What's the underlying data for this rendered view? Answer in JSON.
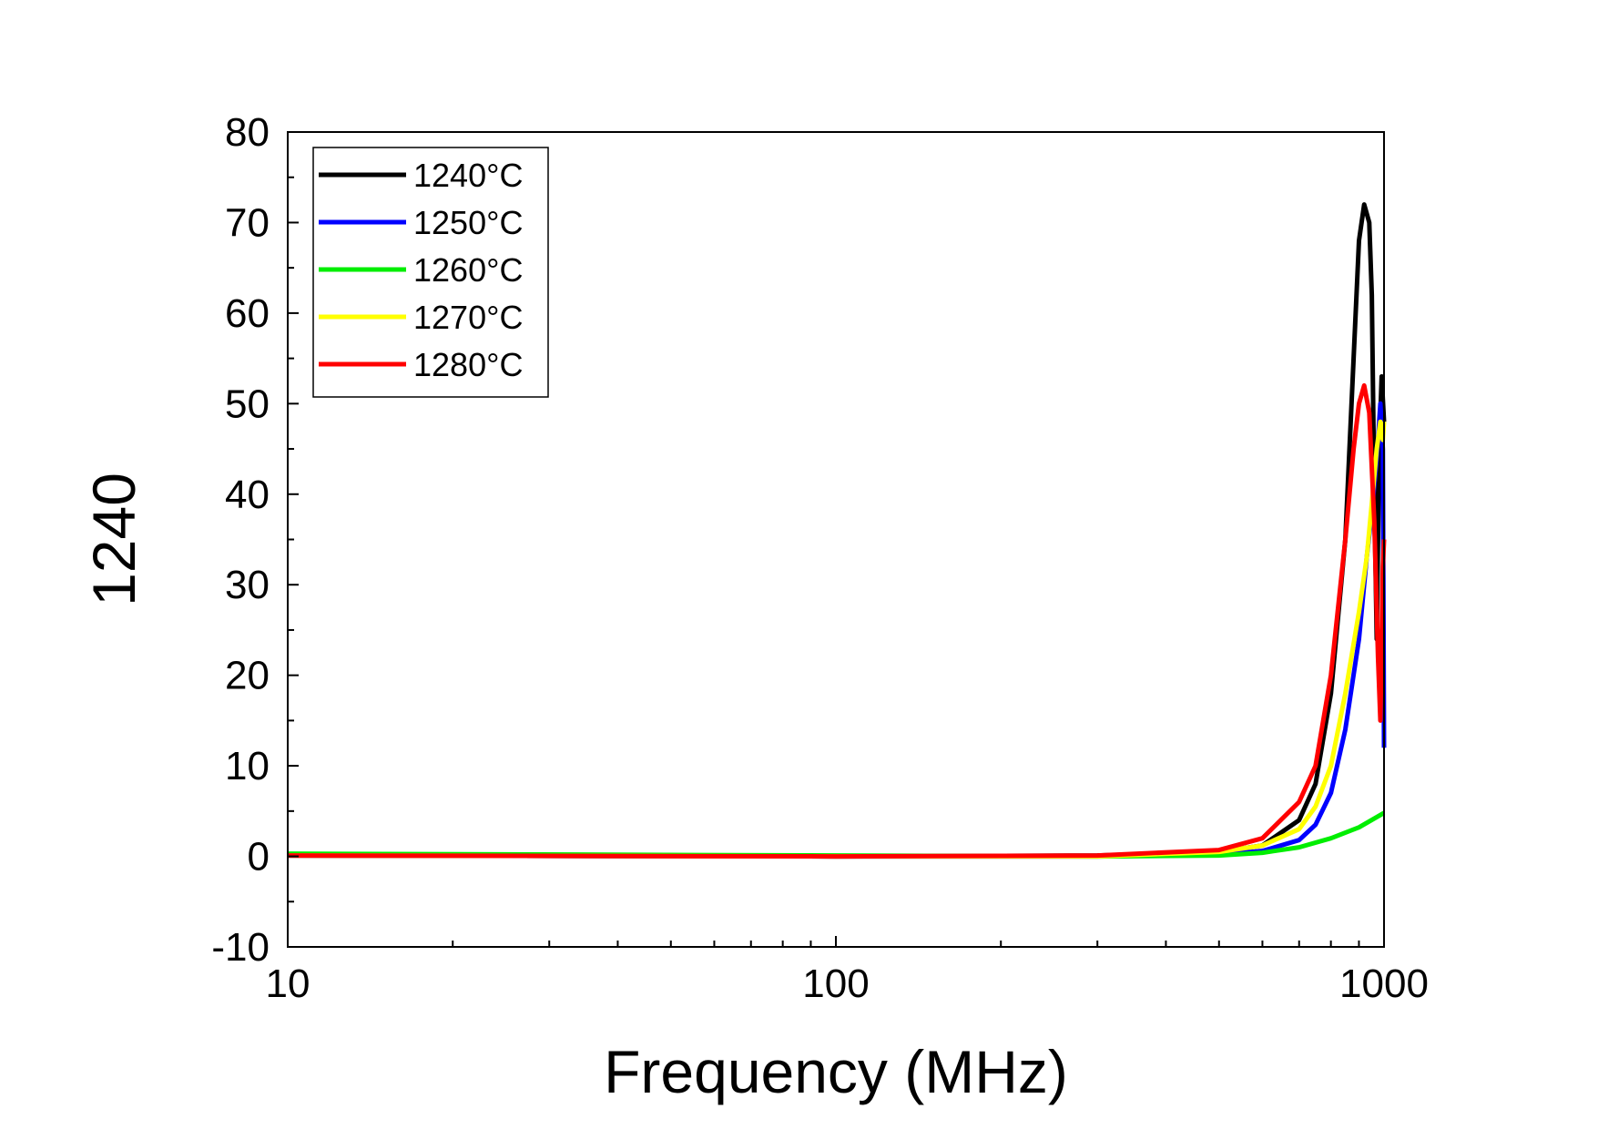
{
  "chart_data": {
    "type": "line",
    "title": "",
    "xlabel": "Frequency (MHz)",
    "ylabel": "1240",
    "xscale": "log",
    "xlim": [
      10,
      1000
    ],
    "ylim": [
      -10,
      80
    ],
    "grid": false,
    "legend_position": "top-left",
    "x_ticks": [
      {
        "value": 10,
        "label": "10"
      },
      {
        "value": 100,
        "label": "100"
      },
      {
        "value": 1000,
        "label": "1000"
      }
    ],
    "y_ticks": [
      {
        "value": -10,
        "label": "-10"
      },
      {
        "value": 0,
        "label": "0"
      },
      {
        "value": 10,
        "label": "10"
      },
      {
        "value": 20,
        "label": "20"
      },
      {
        "value": 30,
        "label": "30"
      },
      {
        "value": 40,
        "label": "40"
      },
      {
        "value": 50,
        "label": "50"
      },
      {
        "value": 60,
        "label": "60"
      },
      {
        "value": 70,
        "label": "70"
      },
      {
        "value": 80,
        "label": "80"
      }
    ],
    "series": [
      {
        "name": "1240°C",
        "color": "#000000",
        "points": [
          [
            10,
            0.1
          ],
          [
            100,
            0
          ],
          [
            300,
            0.1
          ],
          [
            500,
            0.5
          ],
          [
            600,
            1.2
          ],
          [
            700,
            4
          ],
          [
            750,
            8
          ],
          [
            800,
            18
          ],
          [
            850,
            35
          ],
          [
            880,
            55
          ],
          [
            900,
            68
          ],
          [
            920,
            72
          ],
          [
            940,
            70
          ],
          [
            950,
            62
          ],
          [
            960,
            40
          ],
          [
            970,
            24
          ],
          [
            980,
            45
          ],
          [
            990,
            53
          ],
          [
            1000,
            48
          ]
        ]
      },
      {
        "name": "1250°C",
        "color": "#0000ff",
        "points": [
          [
            10,
            0.1
          ],
          [
            100,
            0
          ],
          [
            300,
            0
          ],
          [
            500,
            0.2
          ],
          [
            600,
            0.6
          ],
          [
            700,
            1.8
          ],
          [
            750,
            3.5
          ],
          [
            800,
            7
          ],
          [
            850,
            14
          ],
          [
            900,
            24
          ],
          [
            930,
            33
          ],
          [
            950,
            38
          ],
          [
            970,
            44
          ],
          [
            985,
            50
          ],
          [
            995,
            45
          ],
          [
            1000,
            12
          ]
        ]
      },
      {
        "name": "1260°C",
        "color": "#00ee00",
        "points": [
          [
            10,
            0.3
          ],
          [
            100,
            0.1
          ],
          [
            300,
            0
          ],
          [
            500,
            0.1
          ],
          [
            600,
            0.4
          ],
          [
            700,
            1
          ],
          [
            800,
            2
          ],
          [
            900,
            3.2
          ],
          [
            1000,
            4.8
          ]
        ]
      },
      {
        "name": "1270°C",
        "color": "#ffff00",
        "points": [
          [
            10,
            0.1
          ],
          [
            100,
            0
          ],
          [
            300,
            0
          ],
          [
            500,
            0.5
          ],
          [
            600,
            1.2
          ],
          [
            700,
            3
          ],
          [
            750,
            5.5
          ],
          [
            800,
            10
          ],
          [
            850,
            18
          ],
          [
            900,
            27
          ],
          [
            930,
            33
          ],
          [
            950,
            39
          ],
          [
            970,
            45
          ],
          [
            985,
            48
          ],
          [
            995,
            46
          ],
          [
            1000,
            48
          ]
        ]
      },
      {
        "name": "1280°C",
        "color": "#ff0000",
        "points": [
          [
            10,
            0.1
          ],
          [
            100,
            0
          ],
          [
            300,
            0.1
          ],
          [
            500,
            0.7
          ],
          [
            600,
            2
          ],
          [
            700,
            6
          ],
          [
            750,
            10
          ],
          [
            800,
            20
          ],
          [
            850,
            35
          ],
          [
            880,
            45
          ],
          [
            900,
            50
          ],
          [
            920,
            52
          ],
          [
            940,
            49
          ],
          [
            960,
            37
          ],
          [
            975,
            22
          ],
          [
            985,
            15
          ],
          [
            995,
            32
          ],
          [
            1000,
            35
          ]
        ]
      }
    ]
  }
}
